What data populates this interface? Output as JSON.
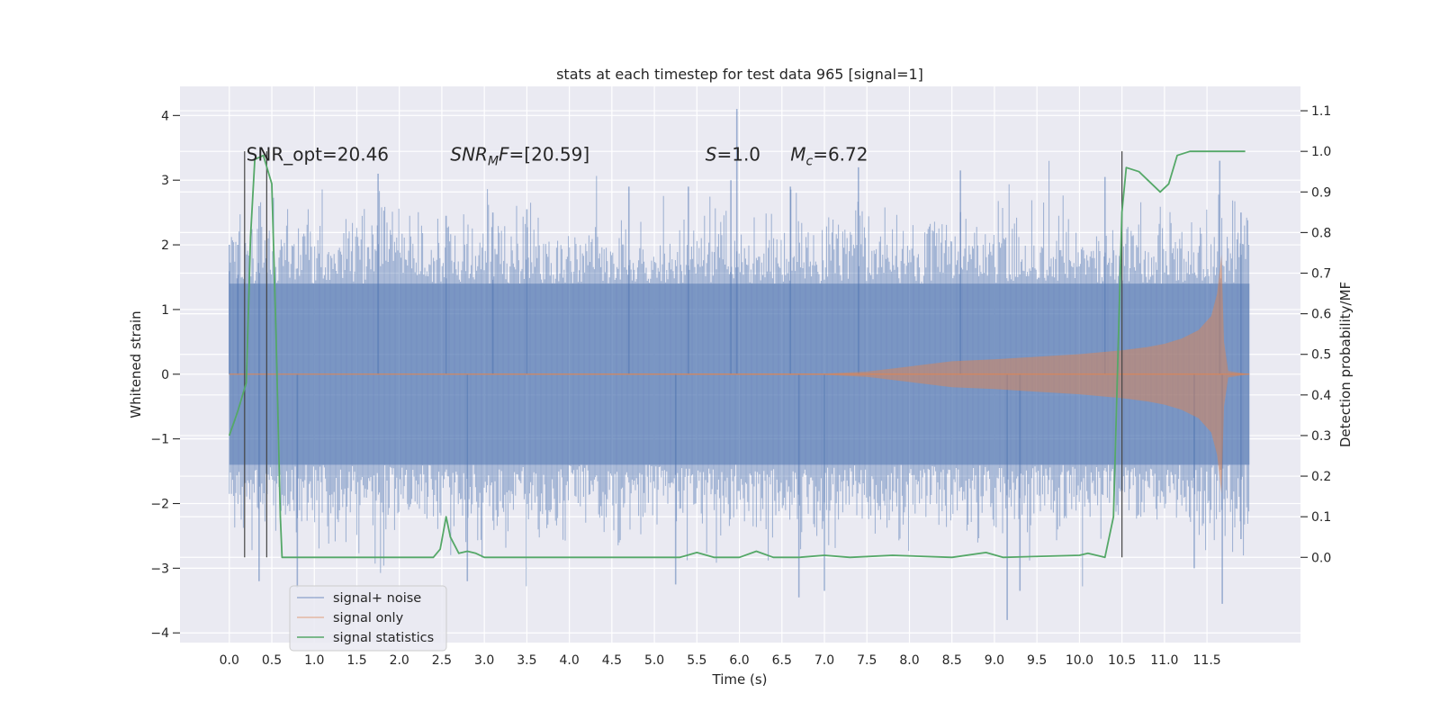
{
  "chart_data": {
    "type": "line",
    "title": "stats at each timestep for test data 965 [signal=1]",
    "xlabel": "Time (s)",
    "ylabel": "Whitened strain",
    "ylabel_right": "Detection probability/MF",
    "xlim": [
      -0.58,
      12.6
    ],
    "ylim": [
      -4.15,
      4.45
    ],
    "ylim_right": [
      -0.21,
      1.16
    ],
    "x_ticks": [
      "0.0",
      "0.5",
      "1.0",
      "1.5",
      "2.0",
      "2.5",
      "3.0",
      "3.5",
      "4.0",
      "4.5",
      "5.0",
      "5.5",
      "6.0",
      "6.5",
      "7.0",
      "7.5",
      "8.0",
      "8.5",
      "9.0",
      "9.5",
      "10.0",
      "10.5",
      "11.0",
      "11.5"
    ],
    "y_ticks_left": [
      "−4",
      "−3",
      "−2",
      "−1",
      "0",
      "1",
      "2",
      "3",
      "4"
    ],
    "y_ticks_right": [
      "0.0",
      "0.1",
      "0.2",
      "0.3",
      "0.4",
      "0.5",
      "0.6",
      "0.7",
      "0.8",
      "0.9",
      "1.0",
      "1.1"
    ],
    "grid": true,
    "legend_position": "lower-left",
    "annotations": [
      {
        "label": "SNR_opt=20.46",
        "x": 0.2,
        "y": 3.3
      },
      {
        "label": "SNR_MF=[20.59]",
        "x": 2.6,
        "y": 3.3
      },
      {
        "label": "S=1.0",
        "x": 5.6,
        "y": 3.3
      },
      {
        "label": "Mc=6.72",
        "x": 6.6,
        "y": 3.3
      }
    ],
    "vertical_lines": [
      0.18,
      0.44,
      10.5
    ],
    "series": [
      {
        "name": "signal+ noise",
        "axis": "left",
        "color": "#4c72b0",
        "alpha": 0.5,
        "x_range": [
          0.0,
          12.0
        ],
        "envelope_core": 1.4,
        "peaks": [
          {
            "x": 0.0,
            "y": 2.0
          },
          {
            "x": 0.1,
            "y": 2.0
          },
          {
            "x": 0.35,
            "y": 2.6
          },
          {
            "x": 1.75,
            "y": 3.1
          },
          {
            "x": 2.55,
            "y": 2.45
          },
          {
            "x": 3.1,
            "y": 2.5
          },
          {
            "x": 3.5,
            "y": 2.55
          },
          {
            "x": 4.7,
            "y": 2.9
          },
          {
            "x": 5.4,
            "y": 2.9
          },
          {
            "x": 5.9,
            "y": 3.0
          },
          {
            "x": 5.97,
            "y": 4.1
          },
          {
            "x": 6.6,
            "y": 2.9
          },
          {
            "x": 7.4,
            "y": 3.2
          },
          {
            "x": 8.6,
            "y": 3.15
          },
          {
            "x": 10.3,
            "y": 3.05
          },
          {
            "x": 11.65,
            "y": 3.3
          },
          {
            "x": 11.9,
            "y": 2.5
          }
        ],
        "troughs": [
          {
            "x": 0.35,
            "y": -3.2
          },
          {
            "x": 0.8,
            "y": -3.3
          },
          {
            "x": 2.8,
            "y": -3.2
          },
          {
            "x": 5.25,
            "y": -3.25
          },
          {
            "x": 6.7,
            "y": -3.45
          },
          {
            "x": 7.0,
            "y": -3.35
          },
          {
            "x": 9.15,
            "y": -3.8
          },
          {
            "x": 9.3,
            "y": -3.35
          },
          {
            "x": 11.35,
            "y": -3.0
          },
          {
            "x": 11.68,
            "y": -3.55
          },
          {
            "x": 11.9,
            "y": -2.55
          }
        ]
      },
      {
        "name": "signal only",
        "axis": "left",
        "color": "#dd8452",
        "alpha": 0.5,
        "envelope": [
          {
            "x": 0.0,
            "y": 0.0
          },
          {
            "x": 7.0,
            "y": 0.01
          },
          {
            "x": 7.5,
            "y": 0.04
          },
          {
            "x": 8.0,
            "y": 0.12
          },
          {
            "x": 8.5,
            "y": 0.2
          },
          {
            "x": 9.0,
            "y": 0.23
          },
          {
            "x": 9.5,
            "y": 0.27
          },
          {
            "x": 10.0,
            "y": 0.31
          },
          {
            "x": 10.5,
            "y": 0.37
          },
          {
            "x": 10.8,
            "y": 0.42
          },
          {
            "x": 11.0,
            "y": 0.47
          },
          {
            "x": 11.2,
            "y": 0.55
          },
          {
            "x": 11.4,
            "y": 0.68
          },
          {
            "x": 11.55,
            "y": 0.9
          },
          {
            "x": 11.62,
            "y": 1.25
          },
          {
            "x": 11.67,
            "y": 1.85
          },
          {
            "x": 11.7,
            "y": 0.5
          },
          {
            "x": 11.75,
            "y": 0.05
          },
          {
            "x": 12.0,
            "y": 0.0
          }
        ]
      },
      {
        "name": "signal statistics",
        "axis": "right",
        "color": "#55a868",
        "x": [
          0.0,
          0.1,
          0.2,
          0.25,
          0.3,
          0.4,
          0.5,
          0.55,
          0.6,
          0.62,
          0.8,
          1.0,
          1.5,
          2.0,
          2.4,
          2.48,
          2.55,
          2.6,
          2.7,
          2.8,
          2.9,
          3.0,
          4.0,
          5.0,
          5.3,
          5.5,
          5.7,
          6.0,
          6.2,
          6.4,
          6.7,
          7.0,
          7.3,
          7.8,
          8.5,
          8.9,
          9.1,
          10.0,
          10.1,
          10.3,
          10.4,
          10.5,
          10.55,
          10.7,
          10.8,
          10.95,
          11.05,
          11.15,
          11.3,
          11.4,
          11.95
        ],
        "y": [
          0.3,
          0.36,
          0.43,
          0.79,
          0.98,
          0.99,
          0.92,
          0.55,
          0.1,
          0.0,
          0.0,
          0.0,
          0.0,
          0.0,
          0.0,
          0.02,
          0.1,
          0.05,
          0.01,
          0.015,
          0.01,
          0.0,
          0.0,
          0.0,
          0.0,
          0.012,
          0.0,
          0.0,
          0.015,
          0.0,
          0.0,
          0.005,
          0.0,
          0.005,
          0.0,
          0.012,
          0.0,
          0.005,
          0.01,
          0.0,
          0.1,
          0.85,
          0.96,
          0.95,
          0.93,
          0.9,
          0.92,
          0.99,
          1.0,
          1.0,
          1.0
        ]
      }
    ]
  }
}
